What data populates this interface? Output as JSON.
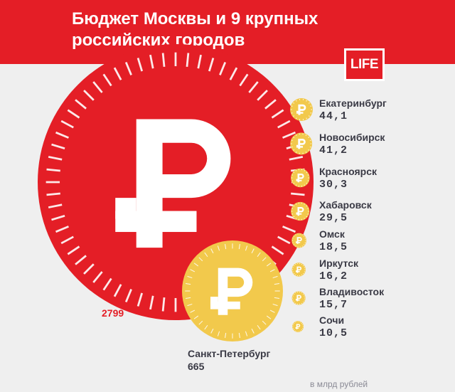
{
  "header": {
    "title": "Бюджет Москвы и 9 крупных российских городов",
    "logo_text": "LIFE"
  },
  "colors": {
    "header_bg": "#e41e26",
    "moscow_coin": "#e41e26",
    "gold_coin": "#f2c94c",
    "gold_coin_light": "#f7d774",
    "text_dark": "#3a3a45"
  },
  "chart_data": {
    "type": "bubble",
    "title": "Бюджет Москвы и 9 крупных российских городов",
    "unit": "в млрд рублей",
    "items": [
      {
        "city": "",
        "value": 2799,
        "value_label": "2799",
        "color": "#e41e26",
        "icon": "ruble-icon"
      },
      {
        "city": "Санкт-Петербург",
        "value": 665,
        "value_label": "665",
        "color": "#f2c94c",
        "icon": "ruble-icon"
      },
      {
        "city": "Екатеринбург",
        "value": 44.1,
        "value_label": "44,1",
        "color": "#f2c94c",
        "icon": "ruble-icon"
      },
      {
        "city": "Новосибирск",
        "value": 41.2,
        "value_label": "41,2",
        "color": "#f2c94c",
        "icon": "ruble-icon"
      },
      {
        "city": "Красноярск",
        "value": 30.3,
        "value_label": "30,3",
        "color": "#f2c94c",
        "icon": "ruble-icon"
      },
      {
        "city": "Хабаровск",
        "value": 29.5,
        "value_label": "29,5",
        "color": "#f2c94c",
        "icon": "ruble-icon"
      },
      {
        "city": "Омск",
        "value": 18.5,
        "value_label": "18,5",
        "color": "#f2c94c",
        "icon": "ruble-icon"
      },
      {
        "city": "Иркутск",
        "value": 16.2,
        "value_label": "16,2",
        "color": "#f2c94c",
        "icon": "ruble-icon"
      },
      {
        "city": "Владивосток",
        "value": 15.7,
        "value_label": "15,7",
        "color": "#f2c94c",
        "icon": "ruble-icon"
      },
      {
        "city": "Сочи",
        "value": 10.5,
        "value_label": "10,5",
        "color": "#f2c94c",
        "icon": "ruble-icon"
      }
    ]
  }
}
